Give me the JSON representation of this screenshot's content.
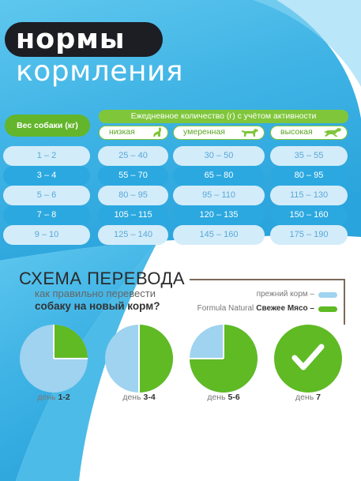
{
  "title": {
    "line1": "нормы",
    "line2": "кормления"
  },
  "table": {
    "weight_header": "Вес собаки (кг)",
    "activity_header": "Ежедневное количество (г) с учётом активности",
    "levels": [
      "низкая",
      "умеренная",
      "высокая"
    ],
    "rows": [
      {
        "weight": "1 – 2",
        "values": [
          "25 – 40",
          "30 – 50",
          "35 – 55"
        ]
      },
      {
        "weight": "3 – 4",
        "values": [
          "55 – 70",
          "65 – 80",
          "80 – 95"
        ]
      },
      {
        "weight": "5 – 6",
        "values": [
          "80 – 95",
          "95 – 110",
          "115 – 130"
        ]
      },
      {
        "weight": "7 – 8",
        "values": [
          "105 – 115",
          "120 – 135",
          "150 – 160"
        ]
      },
      {
        "weight": "9 – 10",
        "values": [
          "125 – 140",
          "145 – 160",
          "175 – 190"
        ]
      }
    ]
  },
  "schema": {
    "title": "СХЕМА ПЕРЕВОДА",
    "question_line1": "как правильно перевести",
    "question_line2": "собаку на новый корм?",
    "legend": {
      "old_label": "прежний корм –",
      "new_label_prefix": "Formula Natural",
      "new_label_bold": "Свежее Мясо –"
    },
    "colors": {
      "old": "#9fd3ef",
      "new": "#5fba24"
    },
    "days": [
      {
        "prefix": "день",
        "label": "1-2",
        "new_fraction": 0.25
      },
      {
        "prefix": "день",
        "label": "3-4",
        "new_fraction": 0.5
      },
      {
        "prefix": "день",
        "label": "5-6",
        "new_fraction": 0.75
      },
      {
        "prefix": "день",
        "label": "7",
        "new_fraction": 1.0
      }
    ]
  }
}
